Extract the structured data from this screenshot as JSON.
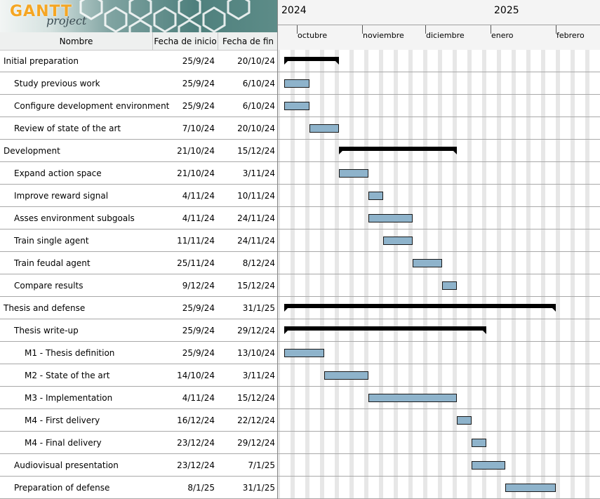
{
  "logo": {
    "word": "GANTT",
    "sub": "project"
  },
  "table": {
    "columns": [
      "Nombre",
      "Fecha de inicio",
      "Fecha de fin"
    ],
    "rows": [
      {
        "name": "Initial preparation",
        "start": "25/9/24",
        "end": "20/10/24",
        "indent": 0,
        "summary": true
      },
      {
        "name": "Study previous work",
        "start": "25/9/24",
        "end": "6/10/24",
        "indent": 1,
        "summary": false
      },
      {
        "name": "Configure development environment",
        "start": "25/9/24",
        "end": "6/10/24",
        "indent": 1,
        "summary": false
      },
      {
        "name": "Review of state of the art",
        "start": "7/10/24",
        "end": "20/10/24",
        "indent": 1,
        "summary": false
      },
      {
        "name": "Development",
        "start": "21/10/24",
        "end": "15/12/24",
        "indent": 0,
        "summary": true
      },
      {
        "name": "Expand action space",
        "start": "21/10/24",
        "end": "3/11/24",
        "indent": 1,
        "summary": false
      },
      {
        "name": "Improve reward signal",
        "start": "4/11/24",
        "end": "10/11/24",
        "indent": 1,
        "summary": false
      },
      {
        "name": "Asses environment subgoals",
        "start": "4/11/24",
        "end": "24/11/24",
        "indent": 1,
        "summary": false
      },
      {
        "name": "Train single agent",
        "start": "11/11/24",
        "end": "24/11/24",
        "indent": 1,
        "summary": false
      },
      {
        "name": "Train feudal agent",
        "start": "25/11/24",
        "end": "8/12/24",
        "indent": 1,
        "summary": false
      },
      {
        "name": "Compare results",
        "start": "9/12/24",
        "end": "15/12/24",
        "indent": 1,
        "summary": false
      },
      {
        "name": "Thesis and defense",
        "start": "25/9/24",
        "end": "31/1/25",
        "indent": 0,
        "summary": true
      },
      {
        "name": "Thesis write-up",
        "start": "25/9/24",
        "end": "29/12/24",
        "indent": 1,
        "summary": true
      },
      {
        "name": "M1 - Thesis definition",
        "start": "25/9/24",
        "end": "13/10/24",
        "indent": 2,
        "summary": false
      },
      {
        "name": "M2 - State of the art",
        "start": "14/10/24",
        "end": "3/11/24",
        "indent": 2,
        "summary": false
      },
      {
        "name": "M3 - Implementation",
        "start": "4/11/24",
        "end": "15/12/24",
        "indent": 2,
        "summary": false
      },
      {
        "name": "M4 - First delivery",
        "start": "16/12/24",
        "end": "22/12/24",
        "indent": 2,
        "summary": false
      },
      {
        "name": "M4 - Final delivery",
        "start": "23/12/24",
        "end": "29/12/24",
        "indent": 2,
        "summary": false
      },
      {
        "name": "Audiovisual presentation",
        "start": "23/12/24",
        "end": "7/1/25",
        "indent": 1,
        "summary": false
      },
      {
        "name": "Preparation of defense",
        "start": "8/1/25",
        "end": "31/1/25",
        "indent": 1,
        "summary": false
      }
    ]
  },
  "timeline": {
    "years": [
      {
        "label": "2024",
        "date": "2024-09-22"
      },
      {
        "label": "2025",
        "date": "2025-01-01"
      }
    ],
    "months": [
      {
        "label": "octubre",
        "date": "2024-10-01"
      },
      {
        "label": "noviembre",
        "date": "2024-11-01"
      },
      {
        "label": "diciembre",
        "date": "2024-12-01"
      },
      {
        "label": "enero",
        "date": "2025-01-01"
      },
      {
        "label": "febrero",
        "date": "2025-02-01"
      }
    ]
  },
  "colors": {
    "task_bar": "#8eb3cb",
    "summary_bar": "#000000",
    "weekend": "#e7e7e7"
  }
}
